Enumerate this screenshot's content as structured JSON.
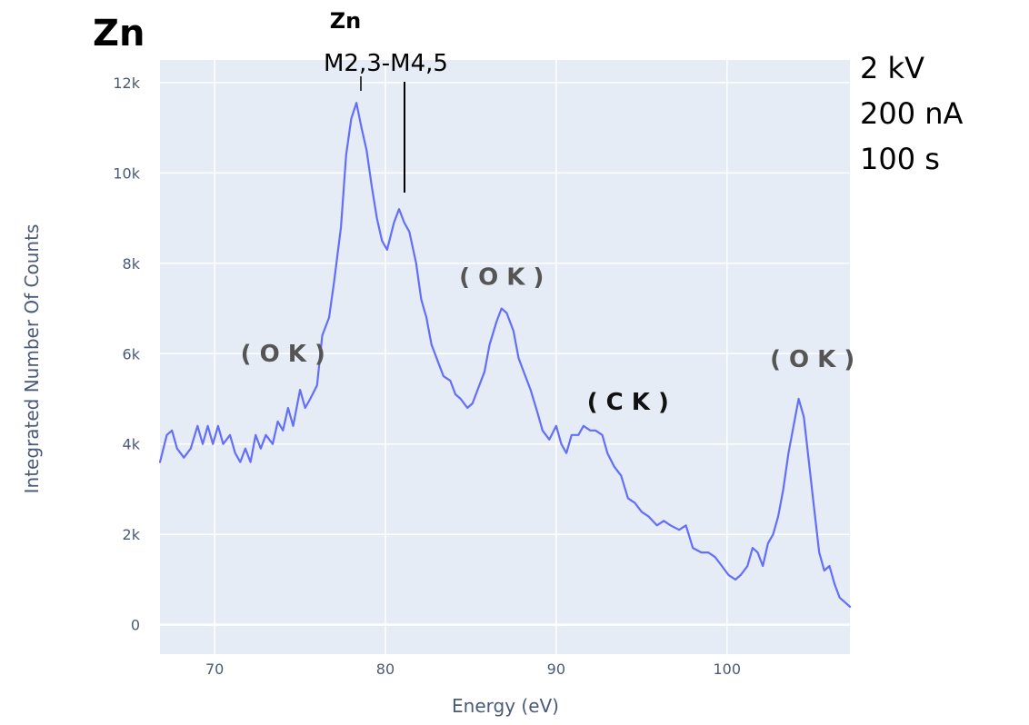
{
  "chart_data": {
    "type": "line",
    "title": "Zn",
    "xlabel": "Energy (eV)",
    "ylabel": "Integrated Number Of Counts",
    "xlim": [
      66.8,
      107.2
    ],
    "ylim": [
      -650,
      12500
    ],
    "x_ticks": [
      {
        "value": 70,
        "label": "70"
      },
      {
        "value": 80,
        "label": "80"
      },
      {
        "value": 90,
        "label": "90"
      },
      {
        "value": 100,
        "label": "100"
      }
    ],
    "y_ticks": [
      {
        "value": 0,
        "label": "0"
      },
      {
        "value": 2000,
        "label": "2k"
      },
      {
        "value": 4000,
        "label": "4k"
      },
      {
        "value": 6000,
        "label": "6k"
      },
      {
        "value": 8000,
        "label": "8k"
      },
      {
        "value": 10000,
        "label": "10k"
      },
      {
        "value": 12000,
        "label": "12k"
      }
    ],
    "grid": true,
    "background_color": "#e5ecf6",
    "series": [
      {
        "color": "#636efa",
        "points": [
          [
            66.8,
            3600
          ],
          [
            67.2,
            4200
          ],
          [
            67.5,
            4300
          ],
          [
            67.8,
            3900
          ],
          [
            68.2,
            3700
          ],
          [
            68.6,
            3900
          ],
          [
            69.0,
            4400
          ],
          [
            69.3,
            4000
          ],
          [
            69.6,
            4400
          ],
          [
            69.9,
            4000
          ],
          [
            70.2,
            4400
          ],
          [
            70.5,
            4000
          ],
          [
            70.9,
            4200
          ],
          [
            71.2,
            3800
          ],
          [
            71.5,
            3600
          ],
          [
            71.8,
            3900
          ],
          [
            72.1,
            3600
          ],
          [
            72.4,
            4200
          ],
          [
            72.7,
            3900
          ],
          [
            73.0,
            4200
          ],
          [
            73.4,
            4000
          ],
          [
            73.7,
            4500
          ],
          [
            74.0,
            4300
          ],
          [
            74.3,
            4800
          ],
          [
            74.6,
            4400
          ],
          [
            75.0,
            5200
          ],
          [
            75.3,
            4800
          ],
          [
            75.6,
            5000
          ],
          [
            76.0,
            5300
          ],
          [
            76.3,
            6400
          ],
          [
            76.7,
            6800
          ],
          [
            77.0,
            7600
          ],
          [
            77.4,
            8800
          ],
          [
            77.7,
            10400
          ],
          [
            78.0,
            11200
          ],
          [
            78.3,
            11550
          ],
          [
            78.6,
            11000
          ],
          [
            78.9,
            10500
          ],
          [
            79.2,
            9700
          ],
          [
            79.5,
            9000
          ],
          [
            79.8,
            8500
          ],
          [
            80.1,
            8300
          ],
          [
            80.5,
            8900
          ],
          [
            80.8,
            9200
          ],
          [
            81.1,
            8900
          ],
          [
            81.4,
            8700
          ],
          [
            81.8,
            8000
          ],
          [
            82.1,
            7200
          ],
          [
            82.4,
            6800
          ],
          [
            82.7,
            6200
          ],
          [
            83.1,
            5800
          ],
          [
            83.4,
            5500
          ],
          [
            83.8,
            5400
          ],
          [
            84.1,
            5100
          ],
          [
            84.4,
            5000
          ],
          [
            84.8,
            4800
          ],
          [
            85.1,
            4900
          ],
          [
            85.5,
            5300
          ],
          [
            85.8,
            5600
          ],
          [
            86.1,
            6200
          ],
          [
            86.5,
            6700
          ],
          [
            86.8,
            7000
          ],
          [
            87.1,
            6900
          ],
          [
            87.5,
            6500
          ],
          [
            87.8,
            5900
          ],
          [
            88.2,
            5500
          ],
          [
            88.5,
            5200
          ],
          [
            88.9,
            4700
          ],
          [
            89.2,
            4300
          ],
          [
            89.6,
            4100
          ],
          [
            90.0,
            4400
          ],
          [
            90.3,
            4000
          ],
          [
            90.6,
            3800
          ],
          [
            90.9,
            4200
          ],
          [
            91.3,
            4200
          ],
          [
            91.6,
            4400
          ],
          [
            92.0,
            4300
          ],
          [
            92.3,
            4300
          ],
          [
            92.7,
            4200
          ],
          [
            93.0,
            3800
          ],
          [
            93.4,
            3500
          ],
          [
            93.8,
            3300
          ],
          [
            94.2,
            2800
          ],
          [
            94.6,
            2700
          ],
          [
            95.0,
            2500
          ],
          [
            95.4,
            2400
          ],
          [
            95.9,
            2200
          ],
          [
            96.3,
            2300
          ],
          [
            96.7,
            2200
          ],
          [
            97.2,
            2100
          ],
          [
            97.6,
            2200
          ],
          [
            98.0,
            1700
          ],
          [
            98.5,
            1600
          ],
          [
            98.9,
            1600
          ],
          [
            99.3,
            1500
          ],
          [
            99.7,
            1300
          ],
          [
            100.1,
            1100
          ],
          [
            100.5,
            1000
          ],
          [
            100.8,
            1100
          ],
          [
            101.2,
            1300
          ],
          [
            101.5,
            1700
          ],
          [
            101.8,
            1600
          ],
          [
            102.1,
            1300
          ],
          [
            102.4,
            1800
          ],
          [
            102.7,
            2000
          ],
          [
            103.0,
            2400
          ],
          [
            103.3,
            3000
          ],
          [
            103.6,
            3800
          ],
          [
            103.9,
            4400
          ],
          [
            104.2,
            5000
          ],
          [
            104.5,
            4600
          ],
          [
            104.8,
            3600
          ],
          [
            105.1,
            2600
          ],
          [
            105.4,
            1600
          ],
          [
            105.7,
            1200
          ],
          [
            106.0,
            1300
          ],
          [
            106.3,
            900
          ],
          [
            106.6,
            600
          ],
          [
            106.9,
            500
          ],
          [
            107.2,
            400
          ]
        ]
      }
    ],
    "annotations": {
      "peak_title": "Zn",
      "transition": "M2,3-M4,5",
      "conditions": [
        "2 kV",
        "200 nA",
        "100 s"
      ],
      "peaks": [
        {
          "x": 74.0,
          "y": 5820,
          "label": "( O K )"
        },
        {
          "x": 86.8,
          "y": 7520,
          "label": "( O K )"
        },
        {
          "x": 94.2,
          "y": 4760,
          "label": "( C K )"
        },
        {
          "x": 105.0,
          "y": 5700,
          "label": "( O K )"
        }
      ]
    }
  }
}
